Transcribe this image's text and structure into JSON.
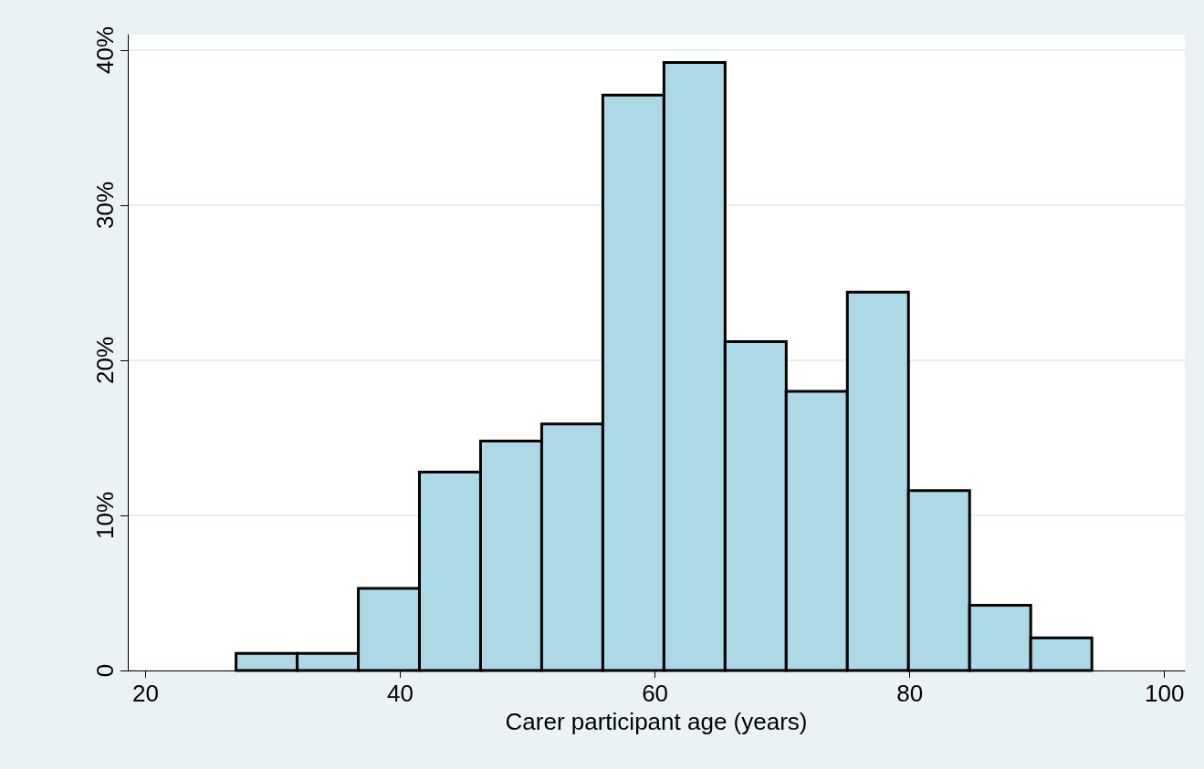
{
  "chart_data": {
    "type": "histogram",
    "xlabel": "Carer participant age (years)",
    "bins": [
      27.1,
      31.9,
      36.7,
      41.5,
      46.3,
      51.1,
      55.9,
      60.7,
      65.5,
      70.3,
      75.1,
      79.9,
      84.7,
      89.5,
      94.3
    ],
    "values": [
      1.1,
      1.1,
      5.3,
      12.8,
      14.8,
      15.9,
      37.1,
      39.2,
      21.2,
      18.0,
      24.4,
      11.6,
      4.2,
      2.1
    ],
    "color": "#add8e6",
    "xlim": [
      18.6,
      101.6
    ],
    "xticks": [
      20,
      40,
      60,
      80,
      100
    ],
    "ylim": [
      0,
      41
    ],
    "yticks": [
      0,
      {
        "value": 10,
        "label": "10%"
      },
      {
        "value": 20,
        "label": "20%"
      },
      {
        "value": 30,
        "label": "30%"
      },
      {
        "value": 40,
        "label": "40%"
      }
    ],
    "grid": "y"
  }
}
